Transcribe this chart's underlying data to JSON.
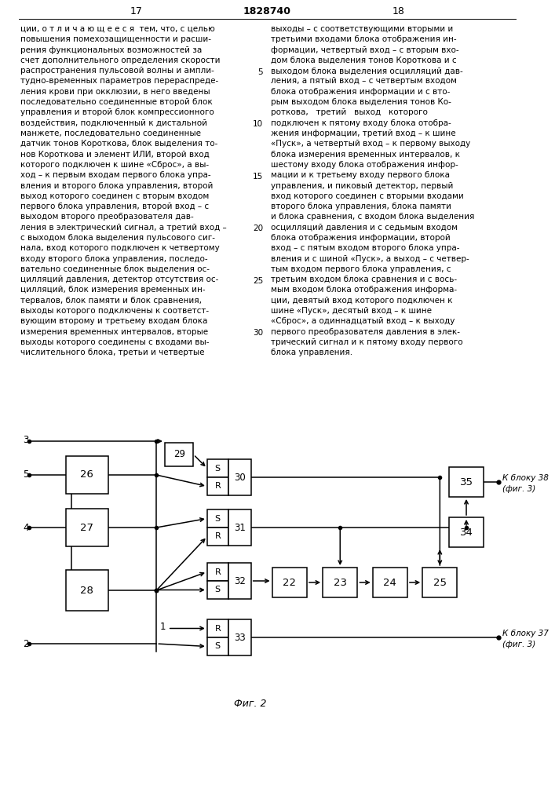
{
  "title": "1828740",
  "page_left": "17",
  "page_right": "18",
  "fig_label": "Фиг. 2",
  "background_color": "#ffffff",
  "line_color": "#000000",
  "text_color": "#000000",
  "left_text": [
    "ции, о т л и ч а ю щ е е с я  тем, что, с целью",
    "повышения помехозащищенности и расши-",
    "рения функциональных возможностей за",
    "счет дополнительного определения скорости",
    "распространения пульсовой волны и ампли-",
    "тудно-временных параметров перераспреде-",
    "ления крови при окклюзии, в него введены",
    "последовательно соединенные второй блок",
    "управления и второй блок компрессионного",
    "воздействия, подключенный к дистальной",
    "манжете, последовательно соединенные",
    "датчик тонов Короткова, блок выделения то-",
    "нов Короткова и элемент ИЛИ, второй вход",
    "которого подключен к шине «Сброс», а вы-",
    "ход – к первым входам первого блока упра-",
    "вления и второго блока управления, второй",
    "выход которого соединен с вторым входом",
    "первого блока управления, второй вход – с",
    "выходом второго преобразователя дав-",
    "ления в электрический сигнал, а третий вход –",
    "с выходом блока выделения пульсового сиг-",
    "нала, вход которого подключен к четвертому",
    "входу второго блока управления, последо-",
    "вательно соединенные блок выделения ос-",
    "цилляций давления, детектор отсутствия ос-",
    "цилляций, блок измерения временных ин-",
    "тервалов, блок памяти и блок сравнения,",
    "выходы которого подключены к соответст-",
    "вующим второму и третьему входам блока",
    "измерения временных интервалов, вторые",
    "выходы которого соединены с входами вы-",
    "числительного блока, третьи и четвертые"
  ],
  "right_text": [
    "выходы – с соответствующими вторыми и",
    "третьими входами блока отображения ин-",
    "формации, четвертый вход – с вторым вхо-",
    "дом блока выделения тонов Короткова и с",
    "выходом блока выделения осцилляций дав-",
    "ления, а пятый вход – с четвертым входом",
    "блока отображения информации и с вто-",
    "рым выходом блока выделения тонов Ко-",
    "роткова,   третий   выход   которого",
    "подключен к пятому входу блока отобра-",
    "жения информации, третий вход – к шине",
    "«Пуск», а четвертый вход – к первому выходу",
    "блока измерения временных интервалов, к",
    "шестому входу блока отображения инфор-",
    "мации и к третьему входу первого блока",
    "управления, и пиковый детектор, первый",
    "вход которого соединен с вторыми входами",
    "второго блока управления, блока памяти",
    "и блока сравнения, с входом блока выделения",
    "осцилляций давления и с седьмым входом",
    "блока отображения информации, второй",
    "вход – с пятым входом второго блока упра-",
    "вления и с шиной «Пуск», а выход – с четвер-",
    "тым входом первого блока управления, с",
    "третьим входом блока сравнения и с вось-",
    "мым входом блока отображения информа-",
    "ции, девятый вход которого подключен к",
    "шине «Пуск», десятый вход – к шине",
    "«Сброс», а одиннадцатый вход – к выходу",
    "первого преобразователя давления в элек-",
    "трический сигнал и к пятому входу первого",
    "блока управления."
  ],
  "line_numbers": [
    5,
    10,
    15,
    20,
    25,
    30
  ]
}
